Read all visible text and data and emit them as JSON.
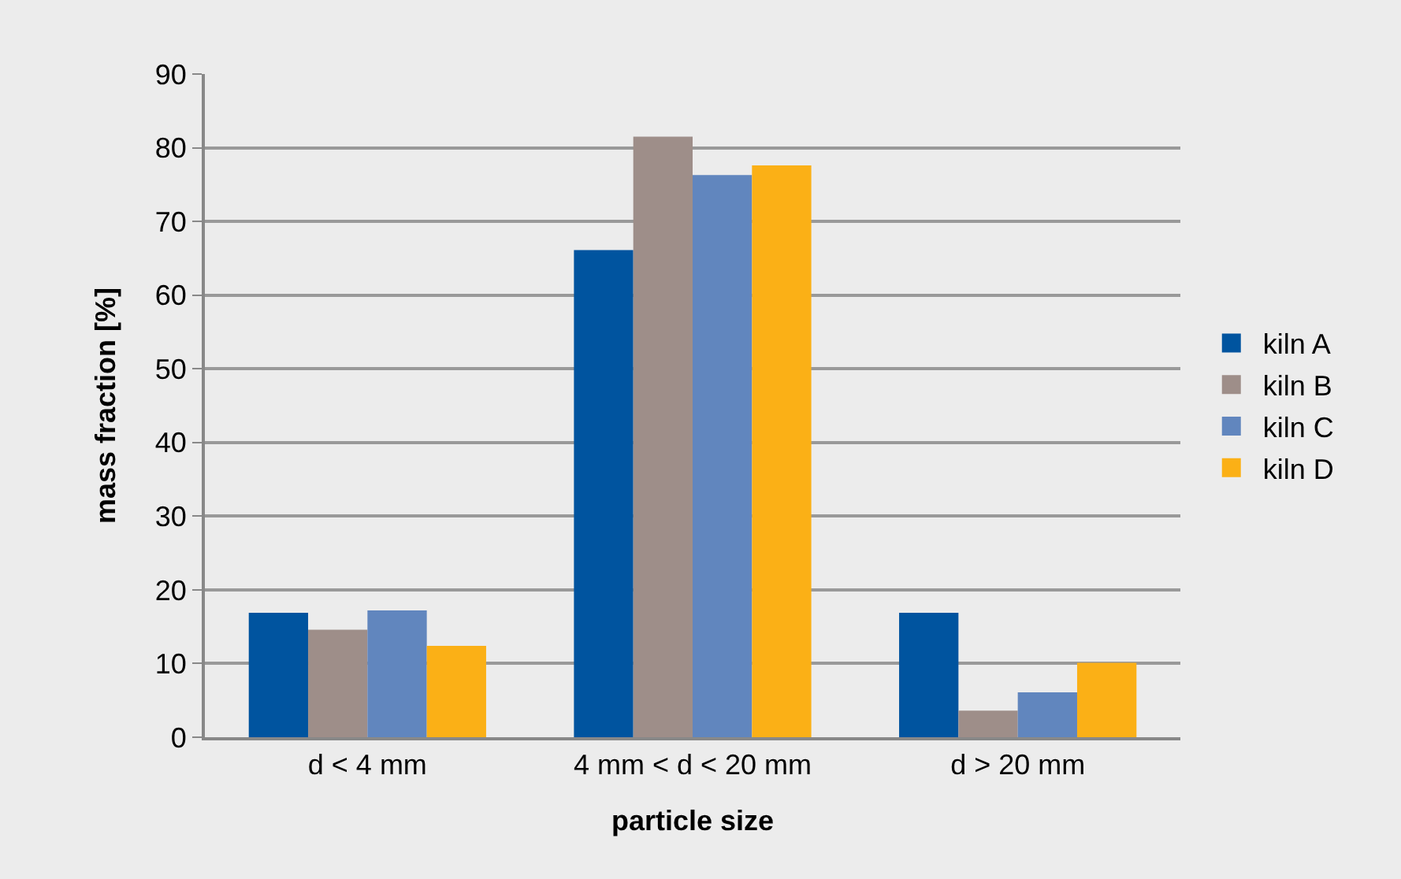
{
  "chart_data": {
    "type": "bar",
    "xlabel": "particle size",
    "ylabel": "mass fraction [%]",
    "categories": [
      "d < 4 mm",
      "4 mm < d < 20 mm",
      "d > 20 mm"
    ],
    "series": [
      {
        "name": "kiln A",
        "color": "#00549f",
        "values": [
          16.9,
          66.1,
          16.9
        ]
      },
      {
        "name": "kiln B",
        "color": "#9e8e89",
        "values": [
          14.6,
          81.5,
          3.6
        ]
      },
      {
        "name": "kiln C",
        "color": "#6186be",
        "values": [
          17.2,
          76.3,
          6.1
        ]
      },
      {
        "name": "kiln D",
        "color": "#fbb016",
        "values": [
          12.4,
          77.6,
          10.1
        ]
      }
    ],
    "ylim": [
      0,
      90
    ],
    "yticks": [
      0,
      10,
      20,
      30,
      40,
      50,
      60,
      70,
      80,
      90
    ],
    "grid": "y",
    "legend": "right"
  }
}
